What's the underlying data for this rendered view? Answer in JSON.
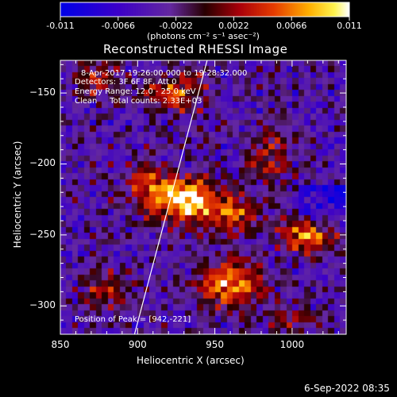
{
  "chart_data": {
    "type": "heatmap",
    "title": "Reconstructed RHESSI Image",
    "xlabel": "Heliocentric X (arcsec)",
    "ylabel": "Heliocentric Y (arcsec)",
    "xlim": [
      850,
      1035
    ],
    "ylim": [
      -320,
      -127
    ],
    "x_ticks": [
      "850",
      "900",
      "950",
      "1000"
    ],
    "x_tick_values": [
      850,
      900,
      950,
      1000
    ],
    "y_ticks": [
      "-150",
      "-200",
      "-250",
      "-300"
    ],
    "y_tick_values": [
      -150,
      -200,
      -250,
      -300
    ],
    "colorbar": {
      "ticks": [
        "-0.011",
        "-0.0066",
        "-0.0022",
        "0.0022",
        "0.0066",
        "0.011"
      ],
      "tick_values": [
        -0.011,
        -0.0066,
        -0.0022,
        0.0022,
        0.0066,
        0.011
      ],
      "range": [
        -0.011,
        0.011
      ],
      "unit_label": "(photons cm⁻² s⁻¹ asec⁻²)"
    },
    "annotations": [
      "8-Apr-2017 19:26:00.000 to 19:28:32.000",
      "Detectors: 3F 6F 8F, Att 0",
      "Energy Range: 12.0 - 25.0 keV",
      "Clean     Total counts: 2.33E+03"
    ],
    "peak_label": "Position of Peak = [942,-221]",
    "peak": [
      942,
      -221
    ],
    "limb_line": [
      [
        898,
        -320
      ],
      [
        945,
        -127
      ]
    ],
    "sources": [
      {
        "x": 930,
        "y": -225,
        "amp": 1.0,
        "sx": 13,
        "sy": 11
      },
      {
        "x": 905,
        "y": -215,
        "amp": 0.55,
        "sx": 10,
        "sy": 12
      },
      {
        "x": 960,
        "y": -235,
        "amp": 0.65,
        "sx": 14,
        "sy": 10
      },
      {
        "x": 1010,
        "y": -250,
        "amp": 0.75,
        "sx": 13,
        "sy": 9
      },
      {
        "x": 960,
        "y": -285,
        "amp": 0.85,
        "sx": 14,
        "sy": 12
      },
      {
        "x": 925,
        "y": -150,
        "amp": 0.6,
        "sx": 14,
        "sy": 10
      },
      {
        "x": 875,
        "y": -140,
        "amp": 0.45,
        "sx": 10,
        "sy": 9
      },
      {
        "x": 880,
        "y": -290,
        "amp": 0.5,
        "sx": 11,
        "sy": 9
      },
      {
        "x": 985,
        "y": -195,
        "amp": 0.45,
        "sx": 10,
        "sy": 14
      },
      {
        "x": 1000,
        "y": -310,
        "amp": 0.35,
        "sx": 10,
        "sy": 8
      }
    ],
    "grid": false
  },
  "footer": {
    "date": "6-Sep-2022 08:35"
  }
}
